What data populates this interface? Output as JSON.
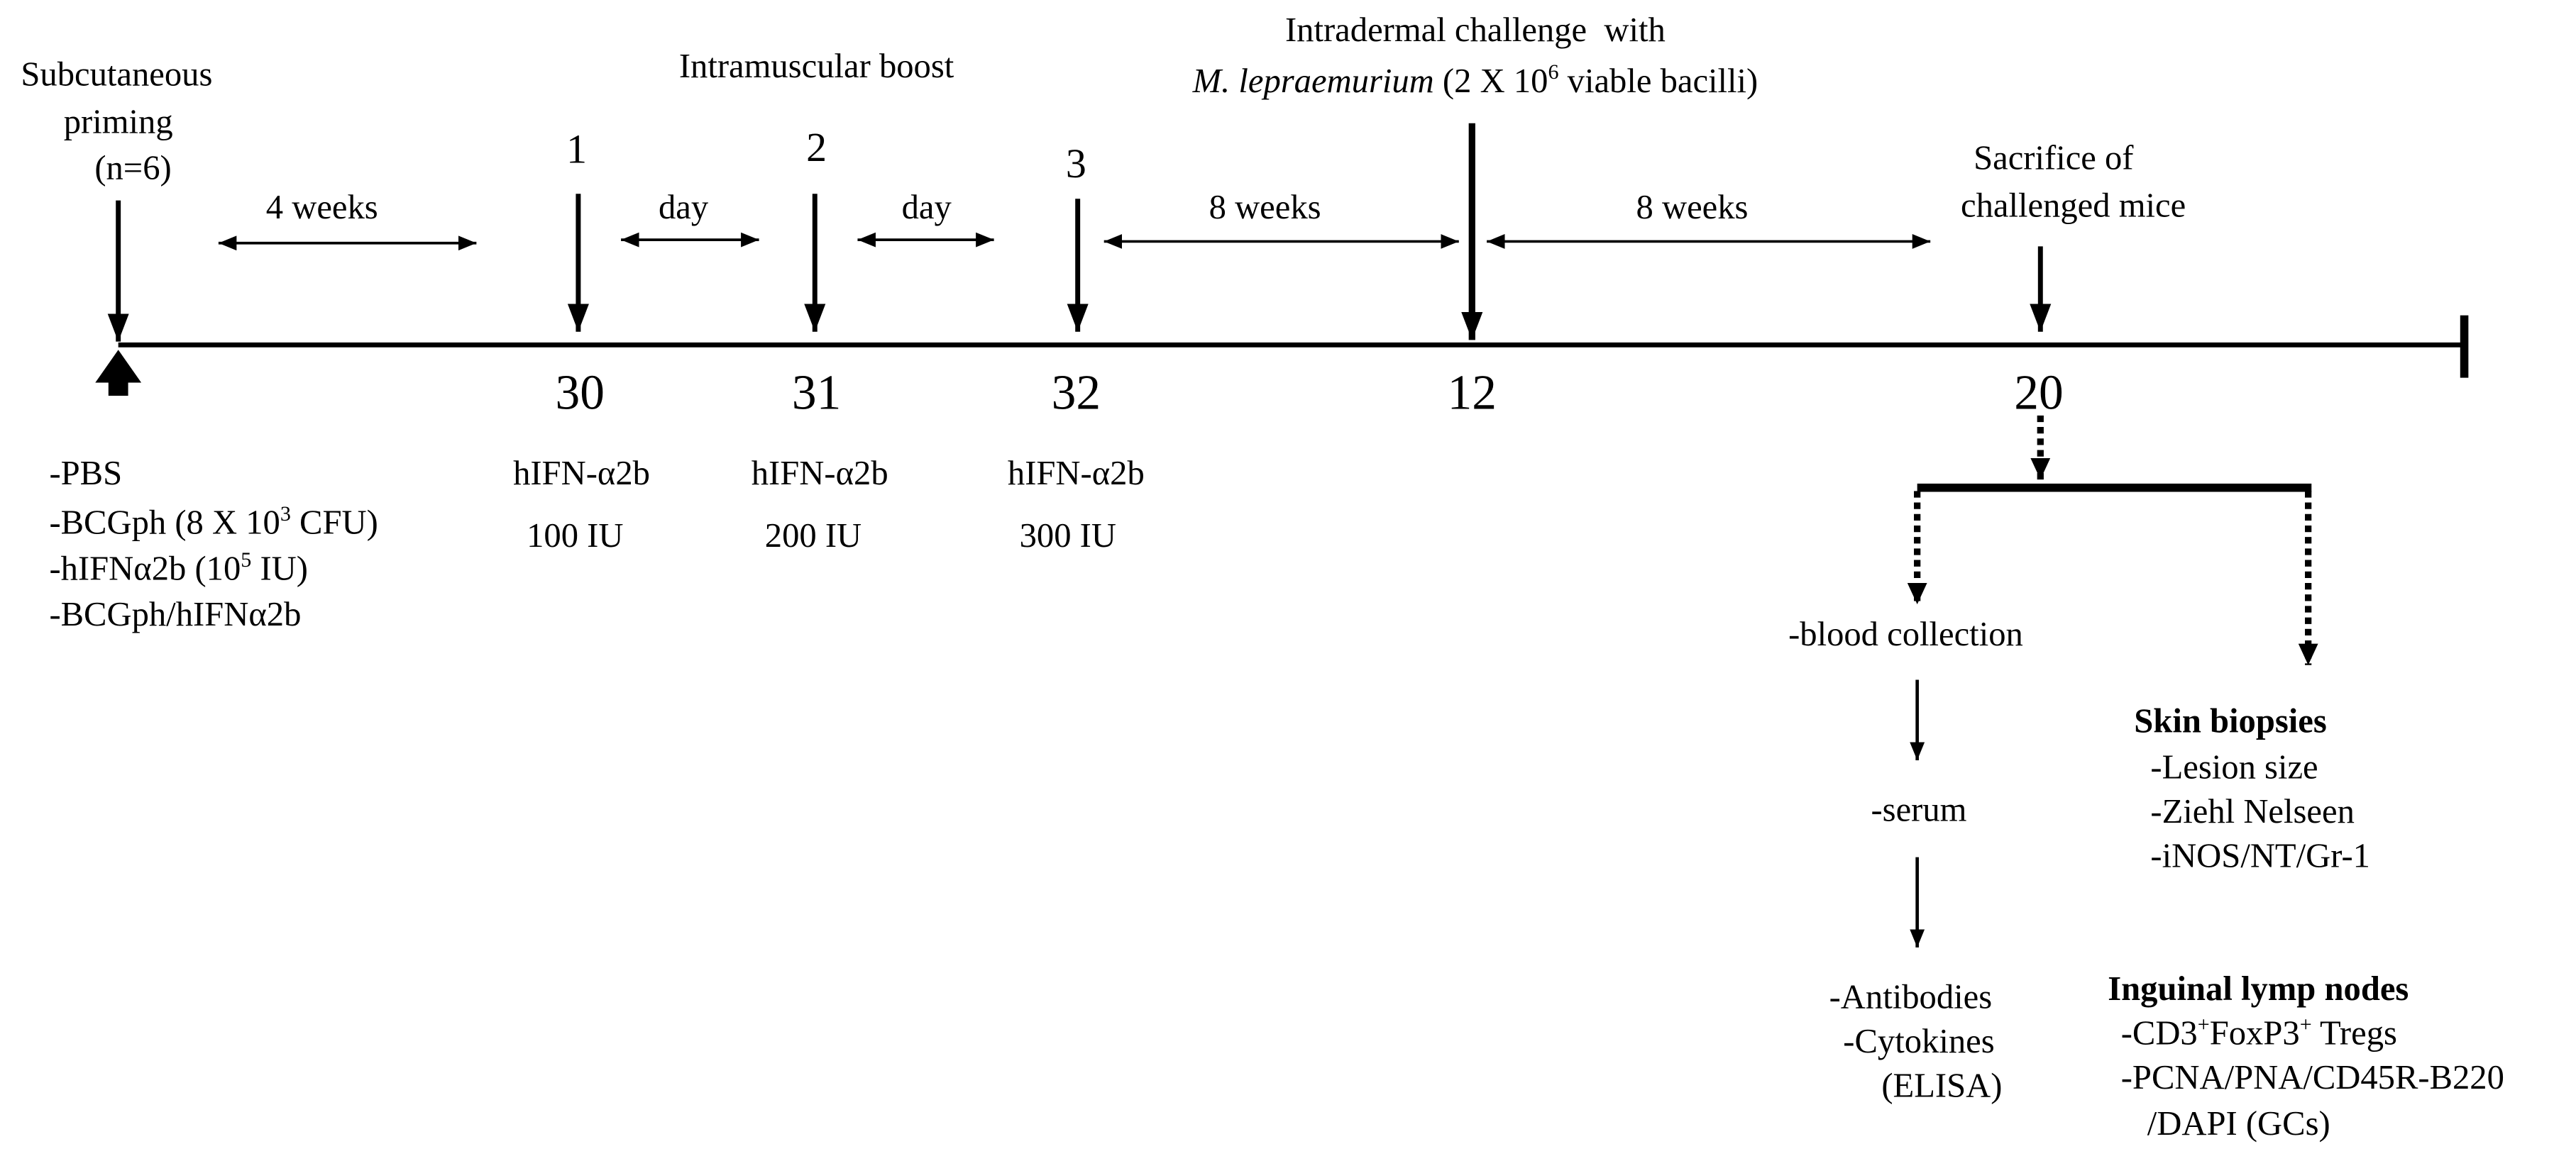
{
  "priming": {
    "line1": "Subcutaneous",
    "line2": "priming",
    "line3": "(n=6)"
  },
  "intervals": {
    "priming_to_boost": "4 weeks",
    "boost1_to_boost2": "day",
    "boost2_to_boost3": "day",
    "boost3_to_challenge": "8 weeks",
    "challenge_to_sacrifice": "8 weeks"
  },
  "boost": {
    "title": "Intramuscular boost",
    "doses": [
      {
        "number": "1",
        "day": "30",
        "drug": "hIFN-α2b",
        "amount": "100 IU"
      },
      {
        "number": "2",
        "day": "31",
        "drug": "hIFN-α2b",
        "amount": "200 IU"
      },
      {
        "number": "3",
        "day": "32",
        "drug": "hIFN-α2b",
        "amount": "300 IU"
      }
    ]
  },
  "challenge": {
    "line1": "Intradermal challenge  with",
    "organism": "M. lepraemurium",
    "dose_pre": " (2 X 10",
    "dose_sup": "6",
    "dose_post": " viable bacilli)",
    "week": "12"
  },
  "sacrifice": {
    "line1": "Sacrifice of",
    "line2": "challenged mice",
    "week": "20"
  },
  "groups": [
    {
      "text": "-PBS"
    },
    {
      "pre": "-BCGph (8 X 10",
      "sup": "3",
      "post": " CFU)"
    },
    {
      "pre": "-hIFNα2b (10",
      "sup": "5",
      "post": " IU)"
    },
    {
      "text": "-BCGph/hIFNα2b"
    }
  ],
  "blood": {
    "collection": "-blood collection",
    "serum": "-serum",
    "assays": [
      "-Antibodies",
      "-Cytokines",
      "(ELISA)"
    ]
  },
  "skin_biopsies": {
    "title": "Skin biopsies",
    "items": [
      "-Lesion size",
      "-Ziehl Nelseen",
      "-iNOS/NT/Gr-1"
    ]
  },
  "lymph_nodes": {
    "title": "Inguinal lymp nodes",
    "tregs": {
      "p1": "-CD3",
      "s1": "+",
      "p2": "FoxP3",
      "s2": "+",
      "p3": " Tregs"
    },
    "items": [
      "-PCNA/PNA/CD45R-B220",
      "/DAPI (GCs)"
    ]
  }
}
